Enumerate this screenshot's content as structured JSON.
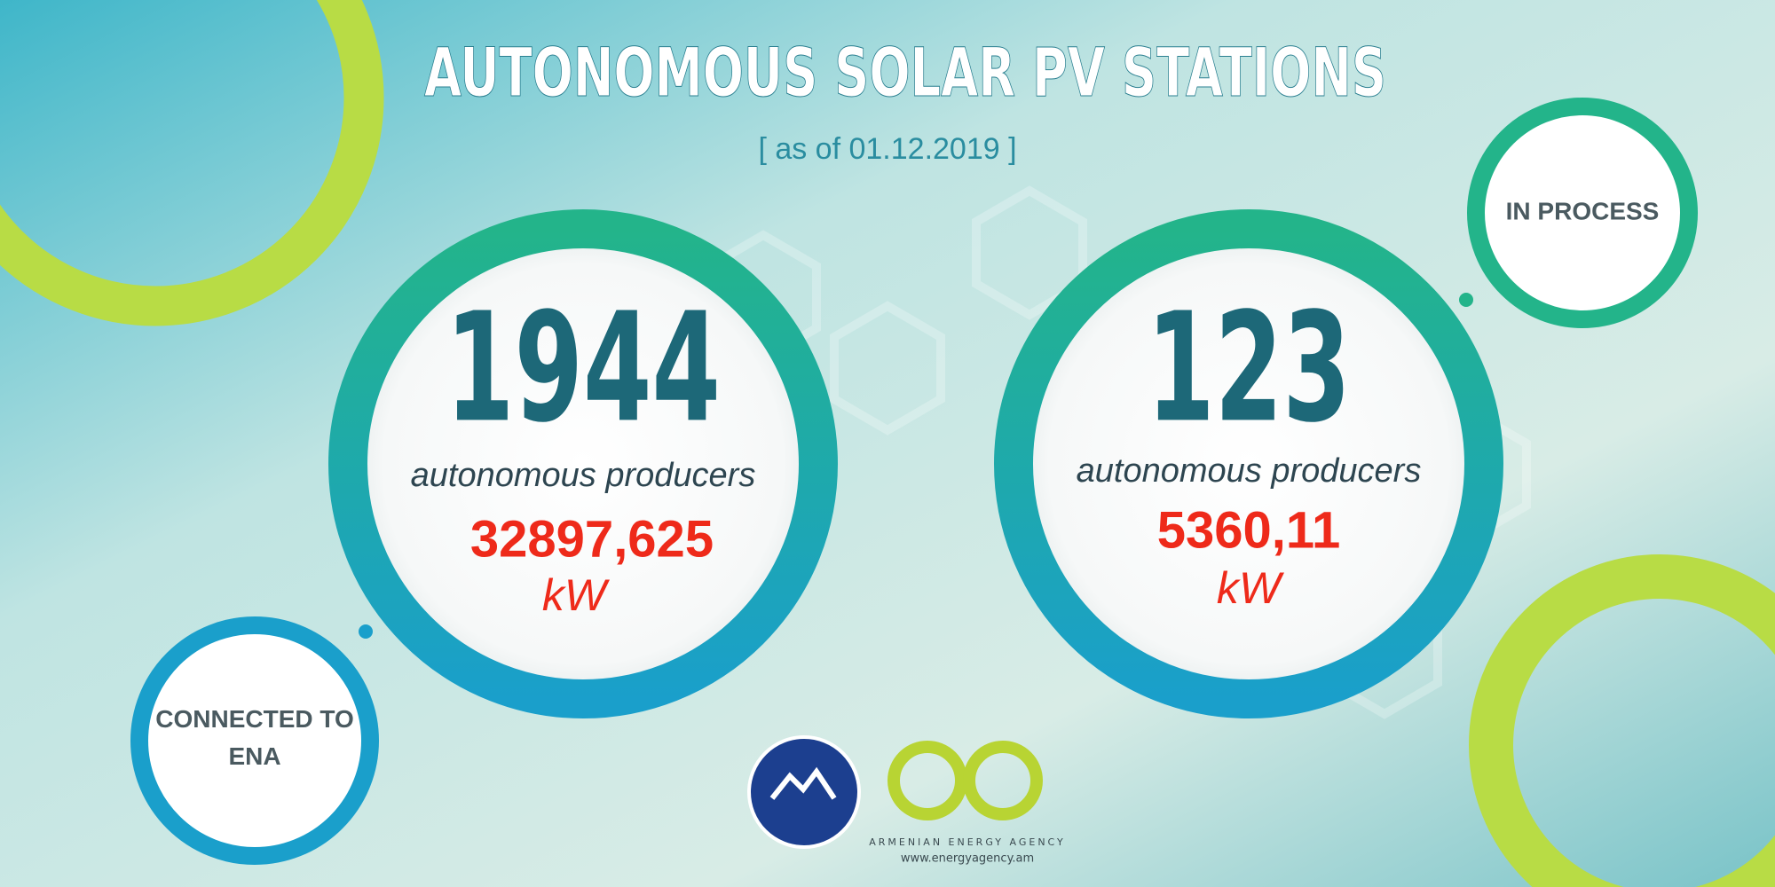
{
  "header": {
    "title": "AUTONOMOUS SOLAR PV STATIONS",
    "subtitle": "[ as of 01.12.2019 ]"
  },
  "stats": [
    {
      "label": "CONNECTED TO ENA",
      "count": "1944",
      "caption": "autonomous producers",
      "power": "32897,625",
      "unit": "kW"
    },
    {
      "label": "IN PROCESS",
      "count": "123",
      "caption": "autonomous producers",
      "power": "5360,11",
      "unit": "kW"
    }
  ],
  "footer": {
    "agency": "ARMENIAN ENERGY AGENCY",
    "url": "www.energyagency.am"
  }
}
